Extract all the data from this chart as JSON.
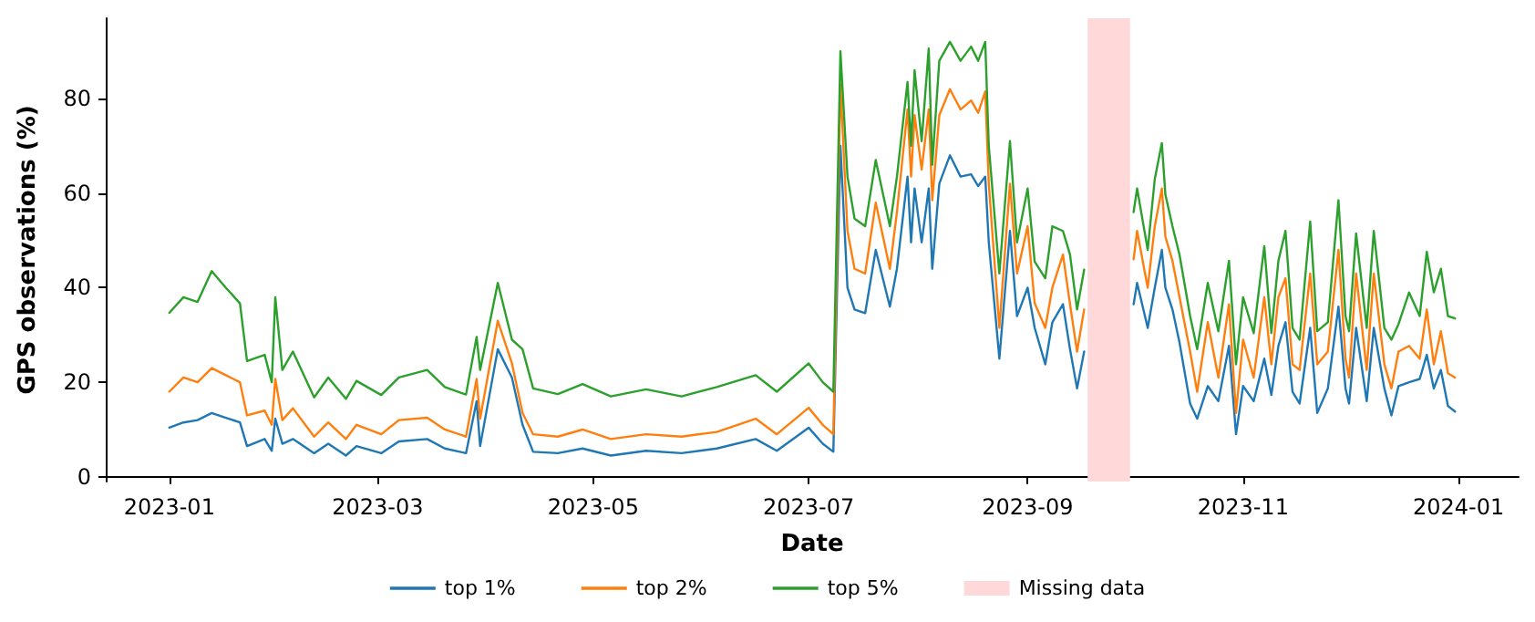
{
  "chart_data": {
    "type": "line",
    "xlabel": "Date",
    "ylabel": "GPS observations (%)",
    "x": [
      "2023-01-01",
      "2023-01-05",
      "2023-01-09",
      "2023-01-13",
      "2023-01-17",
      "2023-01-21",
      "2023-01-23",
      "2023-01-28",
      "2023-01-30",
      "2023-01-31",
      "2023-02-02",
      "2023-02-05",
      "2023-02-11",
      "2023-02-15",
      "2023-02-20",
      "2023-02-23",
      "2023-03-02",
      "2023-03-07",
      "2023-03-15",
      "2023-03-20",
      "2023-03-26",
      "2023-03-29",
      "2023-03-30",
      "2023-04-04",
      "2023-04-08",
      "2023-04-11",
      "2023-04-14",
      "2023-04-21",
      "2023-04-28",
      "2023-05-06",
      "2023-05-16",
      "2023-05-26",
      "2023-06-05",
      "2023-06-16",
      "2023-06-22",
      "2023-07-01",
      "2023-07-05",
      "2023-07-08",
      "2023-07-10",
      "2023-07-12",
      "2023-07-14",
      "2023-07-17",
      "2023-07-20",
      "2023-07-24",
      "2023-07-26",
      "2023-07-29",
      "2023-07-30",
      "2023-07-31",
      "2023-08-02",
      "2023-08-04",
      "2023-08-05",
      "2023-08-07",
      "2023-08-10",
      "2023-08-13",
      "2023-08-16",
      "2023-08-18",
      "2023-08-20",
      "2023-08-21",
      "2023-08-24",
      "2023-08-27",
      "2023-08-29",
      "2023-09-01",
      "2023-09-03",
      "2023-09-06",
      "2023-09-08",
      "2023-09-11",
      "2023-09-13",
      "2023-09-15",
      "2023-09-17",
      "2023-09-24",
      "2023-10-01",
      "2023-10-02",
      "2023-10-05",
      "2023-10-07",
      "2023-10-09",
      "2023-10-10",
      "2023-10-12",
      "2023-10-14",
      "2023-10-17",
      "2023-10-19",
      "2023-10-22",
      "2023-10-25",
      "2023-10-28",
      "2023-10-30",
      "2023-11-01",
      "2023-11-04",
      "2023-11-07",
      "2023-11-09",
      "2023-11-11",
      "2023-11-13",
      "2023-11-15",
      "2023-11-17",
      "2023-11-20",
      "2023-11-22",
      "2023-11-25",
      "2023-11-28",
      "2023-11-30",
      "2023-12-01",
      "2023-12-03",
      "2023-12-06",
      "2023-12-08",
      "2023-12-11",
      "2023-12-13",
      "2023-12-15",
      "2023-12-18",
      "2023-12-21",
      "2023-12-23",
      "2023-12-25",
      "2023-12-27",
      "2023-12-29",
      "2023-12-31"
    ],
    "series": [
      {
        "name": "top 1%",
        "color": "#1f77b4",
        "values": [
          10.4,
          11.5,
          12,
          13.5,
          12.5,
          11.5,
          6.5,
          8,
          5.5,
          12.3,
          7,
          8,
          5,
          7,
          4.5,
          6.5,
          5,
          7.5,
          8,
          6,
          5,
          16,
          6.5,
          27,
          21,
          11,
          5.3,
          5,
          6,
          4.5,
          5.5,
          5,
          6,
          8,
          5.5,
          10.4,
          7,
          5.3,
          70,
          40,
          35.4,
          34.6,
          48,
          36,
          44,
          63.5,
          49.6,
          61,
          49.6,
          61,
          44,
          62,
          68,
          63.5,
          64,
          61.5,
          63.5,
          49.6,
          25,
          52,
          34,
          40,
          31.5,
          23.8,
          32.7,
          36.5,
          27,
          18.7,
          26.5,
          null,
          36.5,
          41,
          31.5,
          40,
          48,
          40,
          35.4,
          28.4,
          15.5,
          12.3,
          19.2,
          16,
          27.7,
          9,
          19.2,
          16,
          25,
          17.3,
          27.7,
          32.7,
          18,
          15.5,
          31.5,
          13.5,
          18.7,
          36,
          18.7,
          15.5,
          31.5,
          16,
          31.5,
          18.7,
          13,
          19.2,
          20,
          20.7,
          25.8,
          18.7,
          22.6,
          15,
          13.8
        ]
      },
      {
        "name": "top 2%",
        "color": "#ff7f0e",
        "values": [
          18,
          21,
          20,
          23,
          21.5,
          20,
          13,
          14,
          11,
          20.7,
          12,
          14.5,
          8.5,
          11.5,
          8,
          11,
          9,
          12,
          12.5,
          10,
          8.5,
          20.7,
          12.3,
          33,
          24,
          13.5,
          9,
          8.5,
          10,
          8,
          9,
          8.5,
          9.5,
          12.3,
          9,
          14.6,
          11,
          9,
          83,
          52,
          44,
          43,
          58,
          44,
          56,
          77.7,
          63.5,
          76.5,
          65,
          77.7,
          58.5,
          76.5,
          82,
          77.7,
          79.6,
          77,
          81.5,
          62,
          31.5,
          62,
          43,
          53,
          36.7,
          31.5,
          40,
          47,
          36.5,
          26.5,
          35.4,
          null,
          46,
          52,
          40,
          53,
          61,
          50.8,
          45.7,
          38,
          26.5,
          18,
          32.7,
          21,
          36.5,
          13.5,
          29,
          21,
          38,
          23.8,
          38,
          42,
          23.8,
          22.6,
          43,
          23.8,
          26.5,
          48,
          25,
          21,
          43,
          22.6,
          43,
          23.8,
          18.7,
          26.5,
          27.7,
          25,
          35.4,
          23.8,
          30.8,
          21.9,
          21
        ]
      },
      {
        "name": "top 5%",
        "color": "#2ca02c",
        "values": [
          34.7,
          38,
          37,
          43.5,
          40,
          36.7,
          24.5,
          25.8,
          20,
          38,
          22.6,
          26.5,
          16.8,
          21,
          16.5,
          20.3,
          17.3,
          21,
          22.6,
          19,
          17.4,
          29.6,
          22.6,
          41,
          29,
          27,
          18.7,
          17.5,
          19.6,
          17,
          18.5,
          17,
          19,
          21.5,
          18,
          24,
          20,
          18,
          90,
          63.5,
          54.6,
          53,
          67,
          53,
          63.5,
          83.5,
          70,
          86,
          71,
          90.6,
          66,
          88,
          92,
          88,
          91,
          88,
          92,
          70,
          43,
          71,
          49.6,
          61,
          45.5,
          42,
          53,
          52,
          47,
          35.4,
          43.8,
          null,
          56,
          61,
          48,
          63,
          70.6,
          59.7,
          53,
          47,
          34,
          27,
          41,
          30.8,
          45.7,
          23.8,
          38,
          30.4,
          48.8,
          30.4,
          45.7,
          52,
          31.5,
          29,
          54,
          30.8,
          32.7,
          58.5,
          34,
          30.8,
          51.5,
          31.5,
          52,
          31.5,
          29,
          32.3,
          39,
          34,
          47.6,
          39,
          44,
          34,
          33.5
        ]
      }
    ],
    "bands": [
      {
        "axis": "x",
        "from": "2023-09-18",
        "to": "2023-09-30",
        "label": "Missing data",
        "color": "#ffd9da"
      }
    ],
    "xlim": [
      "2022-12-14",
      "2024-01-18"
    ],
    "xticks": [
      {
        "value": "2023-01-01",
        "label": "2023-01"
      },
      {
        "value": "2023-03-01",
        "label": "2023-03"
      },
      {
        "value": "2023-05-01",
        "label": "2023-05"
      },
      {
        "value": "2023-07-01",
        "label": "2023-07"
      },
      {
        "value": "2023-09-01",
        "label": "2023-09"
      },
      {
        "value": "2023-11-01",
        "label": "2023-11"
      },
      {
        "value": "2024-01-01",
        "label": "2024-01"
      }
    ],
    "ylim": [
      -1,
      97
    ],
    "yticks": [
      0,
      20,
      40,
      60,
      80
    ],
    "grid": false,
    "legend": "bottom",
    "line_style": "solid"
  }
}
